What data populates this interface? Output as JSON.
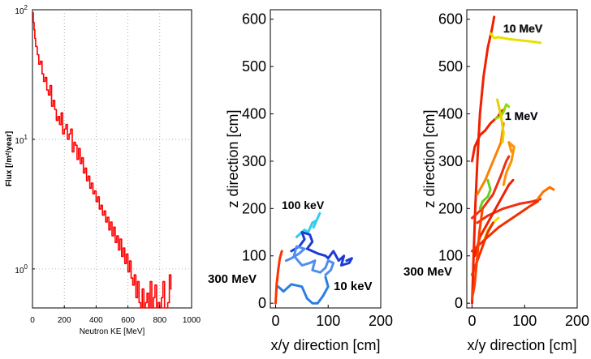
{
  "chart_data": [
    {
      "type": "line",
      "xlabel": "Neutron KE [MeV]",
      "ylabel": "Flux [/m²/year]",
      "xlim": [
        0,
        1000
      ],
      "ylim": [
        0.5,
        100
      ],
      "yscale": "log",
      "grid": true,
      "xticks": [
        "0",
        "200",
        "400",
        "600",
        "800",
        "1000"
      ],
      "yticks": [
        {
          "v": 1,
          "base": "10",
          "exp": "0"
        },
        {
          "v": 10,
          "base": "10",
          "exp": "1"
        },
        {
          "v": 100,
          "base": "10",
          "exp": "2"
        }
      ],
      "series": [
        {
          "color": "#ff0000",
          "x": [
            0,
            5,
            10,
            15,
            20,
            30,
            40,
            50,
            60,
            70,
            80,
            90,
            100,
            110,
            120,
            130,
            140,
            150,
            160,
            170,
            180,
            190,
            200,
            210,
            220,
            230,
            240,
            250,
            260,
            270,
            280,
            290,
            300,
            310,
            320,
            330,
            340,
            350,
            360,
            370,
            380,
            390,
            400,
            410,
            420,
            430,
            440,
            450,
            460,
            470,
            480,
            490,
            500,
            510,
            520,
            530,
            540,
            550,
            560,
            570,
            580,
            590,
            600,
            610,
            620,
            630,
            640,
            650,
            660,
            670,
            680,
            690,
            700,
            710,
            720,
            730,
            740,
            750,
            760,
            770,
            780,
            790,
            800,
            810,
            820,
            830,
            840,
            850,
            860,
            870
          ],
          "y": [
            95,
            80,
            70,
            60,
            52,
            45,
            38,
            40,
            32,
            28,
            30,
            24,
            22,
            26,
            18,
            20,
            17,
            14,
            15,
            13,
            16,
            11,
            12,
            13,
            10,
            11,
            12,
            8,
            9.5,
            9,
            7,
            8.5,
            6.5,
            7.2,
            5.5,
            6,
            4.8,
            5.2,
            4.2,
            4.6,
            3.8,
            4.0,
            3.3,
            3.6,
            2.9,
            3.1,
            2.6,
            2.8,
            2.3,
            2.5,
            2.0,
            2.3,
            1.8,
            2.1,
            1.6,
            1.8,
            1.4,
            1.7,
            1.25,
            1.45,
            1.1,
            1.3,
            0.95,
            1.15,
            0.85,
            0.75,
            0.9,
            0.6,
            0.8,
            0.55,
            0.5,
            0.7,
            0.5,
            0.55,
            0.65,
            0.5,
            0.8,
            0.5,
            0.6,
            0.75,
            0.5,
            0.55,
            0.5,
            0.6,
            0.8,
            0.5,
            0.5,
            0.55,
            0.9,
            0.7
          ]
        }
      ]
    },
    {
      "type": "line",
      "xlabel": "x/y direction [cm]",
      "ylabel": "z direction [cm]",
      "xlim": [
        -10,
        200
      ],
      "ylim": [
        -10,
        620
      ],
      "xticks": [
        "0",
        "100",
        "200"
      ],
      "yticks": [
        "0",
        "100",
        "200",
        "300",
        "400",
        "500",
        "600"
      ],
      "annotations": [
        {
          "text": "100 keV",
          "color": "#33ccee"
        },
        {
          "text": "300 MeV",
          "color": "#ff3300"
        },
        {
          "text": "10 keV",
          "color": "#1f3bd6"
        }
      ],
      "series": [
        {
          "color": "#33ccee",
          "x": [
            40,
            55,
            62,
            70,
            78,
            72,
            80,
            84
          ],
          "y": [
            140,
            155,
            150,
            170,
            175,
            160,
            180,
            190
          ]
        },
        {
          "color": "#1f3bd6",
          "x": [
            30,
            45,
            55,
            50,
            65,
            70,
            60,
            80,
            95,
            100,
            110,
            120,
            130,
            125,
            140,
            145,
            135
          ],
          "y": [
            110,
            120,
            135,
            150,
            145,
            130,
            115,
            105,
            100,
            95,
            110,
            90,
            100,
            80,
            85,
            95,
            90
          ]
        },
        {
          "color": "#4f8ef0",
          "x": [
            20,
            30,
            45,
            55,
            40,
            35,
            50,
            65,
            75,
            70,
            85,
            95,
            100,
            110,
            105,
            95
          ],
          "y": [
            90,
            95,
            105,
            115,
            120,
            100,
            80,
            85,
            90,
            70,
            65,
            75,
            90,
            85,
            70,
            60
          ]
        },
        {
          "color": "#2a7fe0",
          "x": [
            5,
            10,
            15,
            30,
            50,
            60,
            70,
            80,
            90,
            100,
            95
          ],
          "y": [
            35,
            30,
            25,
            40,
            35,
            10,
            0,
            0,
            15,
            35,
            55
          ]
        },
        {
          "color": "#ff3300",
          "x": [
            0,
            2,
            5,
            8,
            12
          ],
          "y": [
            0,
            40,
            70,
            95,
            110
          ]
        }
      ]
    },
    {
      "type": "line",
      "xlabel": "x/y direction [cm]",
      "ylabel": "z direction [cm]",
      "xlim": [
        -10,
        200
      ],
      "ylim": [
        -10,
        620
      ],
      "xticks": [
        "0",
        "100",
        "200"
      ],
      "yticks": [
        "0",
        "100",
        "200",
        "300",
        "400",
        "500",
        "600"
      ],
      "annotations": [
        {
          "text": "10 MeV",
          "color": "#e8e000"
        },
        {
          "text": "1 MeV",
          "color": "#66d020"
        },
        {
          "text": "300 MeV",
          "color": "#ff3300"
        }
      ],
      "series": [
        {
          "color": "#f02000",
          "x": [
            0,
            3,
            6,
            10,
            15,
            22,
            30,
            38,
            42
          ],
          "y": [
            0,
            100,
            200,
            300,
            400,
            480,
            540,
            580,
            605
          ]
        },
        {
          "color": "#e8e000",
          "x": [
            35,
            42,
            50,
            70,
            95,
            120,
            130
          ],
          "y": [
            570,
            560,
            562,
            558,
            555,
            552,
            550
          ]
        },
        {
          "color": "#f02000",
          "x": [
            0,
            5,
            15,
            25,
            35,
            45,
            50,
            55,
            62
          ],
          "y": [
            300,
            330,
            355,
            365,
            380,
            390,
            395,
            405,
            410
          ]
        },
        {
          "color": "#ff8000",
          "x": [
            10,
            25,
            40,
            55,
            60
          ],
          "y": [
            230,
            260,
            300,
            340,
            380
          ]
        },
        {
          "color": "#f03010",
          "x": [
            0,
            20,
            40,
            55,
            65,
            70
          ],
          "y": [
            180,
            200,
            230,
            270,
            300,
            310
          ]
        },
        {
          "color": "#f03010",
          "x": [
            10,
            30,
            60,
            90,
            115,
            125,
            130
          ],
          "y": [
            170,
            185,
            200,
            210,
            215,
            218,
            220
          ]
        },
        {
          "color": "#ff7000",
          "x": [
            125,
            135,
            148,
            155
          ],
          "y": [
            220,
            235,
            245,
            240
          ]
        },
        {
          "color": "#f02000",
          "x": [
            5,
            15,
            30,
            45,
            60,
            70,
            78
          ],
          "y": [
            100,
            140,
            170,
            200,
            230,
            250,
            260
          ]
        },
        {
          "color": "#ff9000",
          "x": [
            60,
            65,
            75,
            80,
            70,
            75
          ],
          "y": [
            250,
            275,
            300,
            330,
            340,
            320
          ]
        },
        {
          "color": "#e8e000",
          "x": [
            20,
            25,
            30,
            40,
            50
          ],
          "y": [
            120,
            140,
            155,
            170,
            180
          ]
        },
        {
          "color": "#88e000",
          "x": [
            45,
            55,
            60,
            65,
            70
          ],
          "y": [
            390,
            395,
            405,
            420,
            415
          ]
        },
        {
          "color": "#e8d000",
          "x": [
            48,
            50,
            55,
            60,
            58
          ],
          "y": [
            430,
            420,
            395,
            360,
            340
          ]
        },
        {
          "color": "#f03000",
          "x": [
            0,
            10,
            20,
            30,
            40
          ],
          "y": [
            60,
            90,
            120,
            150,
            170
          ]
        },
        {
          "color": "#f03000",
          "x": [
            0,
            20,
            50,
            90,
            110,
            125
          ],
          "y": [
            110,
            130,
            160,
            190,
            205,
            215
          ]
        },
        {
          "color": "#ff4000",
          "x": [
            0,
            5,
            10,
            14,
            20
          ],
          "y": [
            10,
            40,
            100,
            150,
            200
          ]
        },
        {
          "color": "#66d020",
          "x": [
            15,
            20,
            30,
            35,
            30
          ],
          "y": [
            200,
            215,
            225,
            240,
            260
          ]
        }
      ]
    }
  ]
}
